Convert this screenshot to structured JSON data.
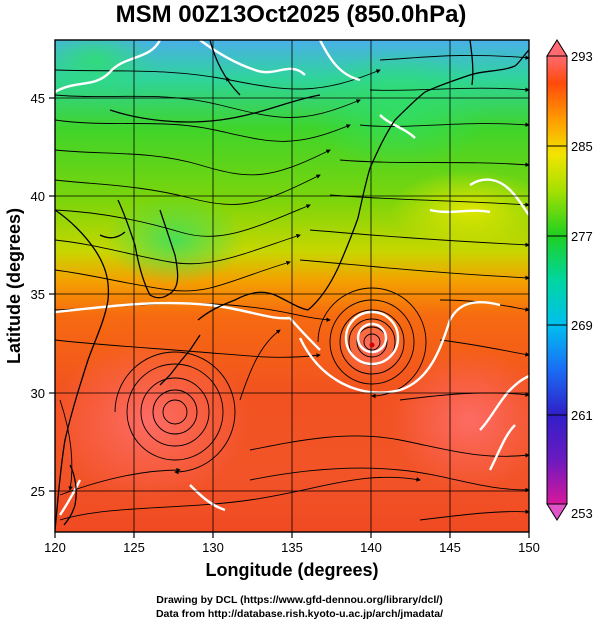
{
  "title": "MSM 00Z13Oct2025 (850.0hPa)",
  "x_axis": {
    "label": "Longitude (degrees)",
    "range": [
      120,
      150
    ],
    "ticks": [
      "120",
      "125",
      "130",
      "135",
      "140",
      "145",
      "150"
    ]
  },
  "y_axis": {
    "label": "Latitude  (degrees)",
    "range": [
      22.5,
      47.5
    ],
    "ticks": [
      "25",
      "30",
      "35",
      "40",
      "45"
    ]
  },
  "colorbar": {
    "range": [
      253,
      293
    ],
    "labels": [
      "293",
      "285",
      "277",
      "269",
      "261",
      "253"
    ],
    "colors": [
      "#d8179b",
      "#2f1fc9",
      "#1a6df5",
      "#00d6ee",
      "#00d048",
      "#5cdc00",
      "#d8e800",
      "#ff9a00",
      "#ff4a0c",
      "#ff6a70"
    ]
  },
  "overlay": {
    "streamlines": true,
    "contours_color": "#ffffff",
    "coastline_color": "#000000",
    "grid": true
  },
  "credits": {
    "line1": "Drawing by DCL (https://www.gfd-dennou.org/library/dcl/)",
    "line2": "Data from http://database.rish.kyoto-u.ac.jp/arch/jmadata/"
  }
}
